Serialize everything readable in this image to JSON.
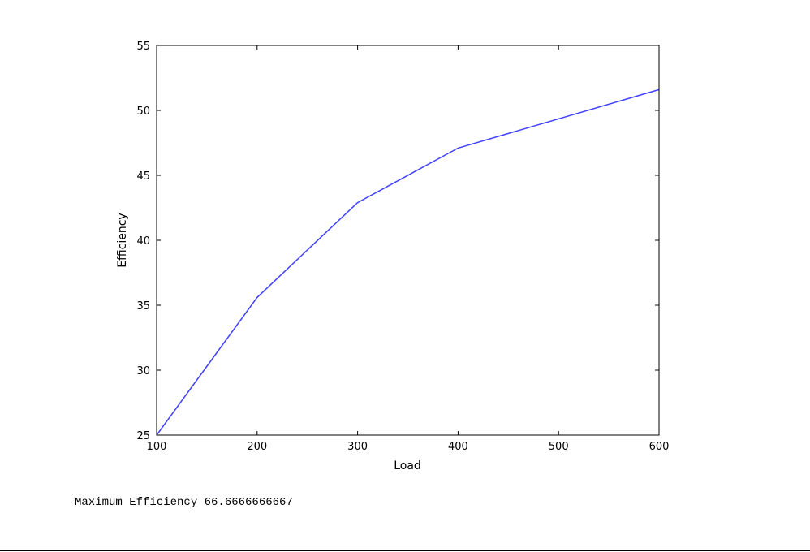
{
  "chart_data": {
    "type": "line",
    "title": "",
    "xlabel": "Load",
    "ylabel": "Efficiency",
    "xlim": [
      100,
      600
    ],
    "ylim": [
      25,
      55
    ],
    "xticks": [
      100,
      200,
      300,
      400,
      500,
      600
    ],
    "yticks": [
      25,
      30,
      35,
      40,
      45,
      50,
      55
    ],
    "grid": false,
    "series": [
      {
        "color": "#4040ff",
        "x": [
          100,
          200,
          300,
          400,
          600
        ],
        "y": [
          25.0,
          35.6,
          42.9,
          47.1,
          51.6
        ]
      }
    ]
  },
  "output": {
    "text": "Maximum Efficiency 66.6666666667"
  }
}
